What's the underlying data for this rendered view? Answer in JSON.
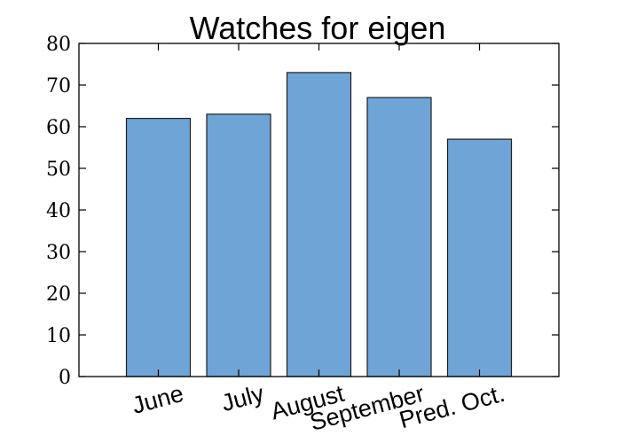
{
  "chart_data": {
    "type": "bar",
    "title": "Watches for eigen",
    "xlabel": "",
    "ylabel": "",
    "categories": [
      "June",
      "July",
      "August",
      "September",
      "Pred. Oct."
    ],
    "values": [
      62,
      63,
      73,
      67,
      57
    ],
    "ylim": [
      0,
      80
    ],
    "yticks": [
      "0",
      "10",
      "20",
      "30",
      "40",
      "50",
      "60",
      "70",
      "80"
    ],
    "grid": false,
    "legend": "none",
    "bar_color": "#6fa5d6",
    "bar_edge_color": "#1f1f1f"
  }
}
